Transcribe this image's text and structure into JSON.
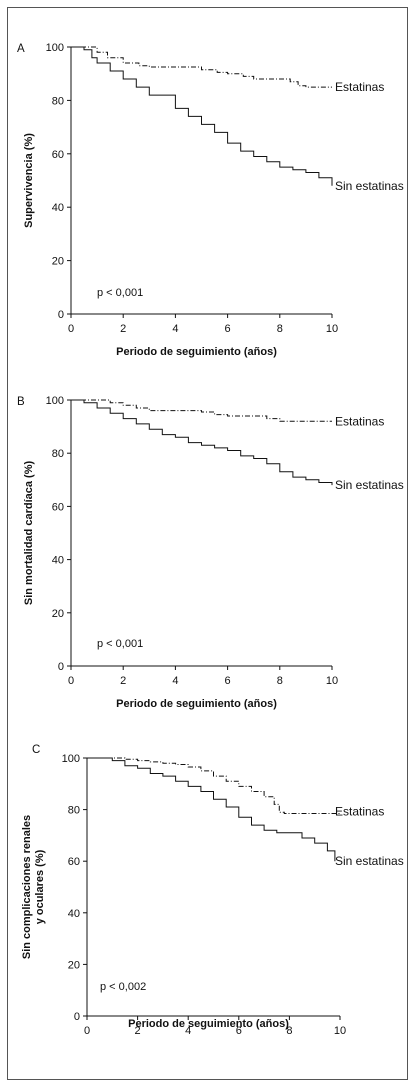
{
  "chart_data": [
    {
      "type": "line",
      "panel_label": "A",
      "xlabel": "Periodo de seguimiento (años)",
      "ylabel": [
        "Supervivencia (%)"
      ],
      "xlim": [
        0,
        10
      ],
      "ylim": [
        0,
        100
      ],
      "xticks": [
        "0",
        "2",
        "4",
        "6",
        "8",
        "10"
      ],
      "yticks": [
        "0",
        "20",
        "40",
        "60",
        "80",
        "100"
      ],
      "annotation": "p < 0,001",
      "series": [
        {
          "name": "Estatinas",
          "style": "dashdot",
          "x": [
            0,
            0.6,
            1.0,
            1.4,
            2.0,
            2.6,
            3.0,
            4.0,
            5.0,
            5.6,
            6.0,
            6.6,
            7.0,
            8.0,
            8.4,
            8.7,
            9.0,
            10.0
          ],
          "y": [
            100,
            100,
            98,
            96,
            94,
            93,
            92.5,
            92.5,
            91.5,
            90.5,
            90,
            89,
            88,
            88,
            87,
            85.5,
            85,
            85
          ]
        },
        {
          "name": "Sin estatinas",
          "style": "solid",
          "x": [
            0,
            0.5,
            0.8,
            1.0,
            1.5,
            2.0,
            2.5,
            3.0,
            4.0,
            4.5,
            5.0,
            5.5,
            6.0,
            6.5,
            7.0,
            7.5,
            8.0,
            8.5,
            9.0,
            9.5,
            10.0
          ],
          "y": [
            100,
            99,
            96,
            94,
            91,
            88,
            85,
            82,
            77,
            74,
            71,
            68,
            64,
            61,
            59,
            57,
            55,
            54,
            53,
            51,
            48
          ]
        }
      ]
    },
    {
      "type": "line",
      "panel_label": "B",
      "xlabel": "Periodo de seguimiento (años)",
      "ylabel": [
        "Sin mortalidad cardíaca (%)"
      ],
      "xlim": [
        0,
        10
      ],
      "ylim": [
        0,
        100
      ],
      "xticks": [
        "0",
        "2",
        "4",
        "6",
        "8",
        "10"
      ],
      "yticks": [
        "0",
        "20",
        "40",
        "60",
        "80",
        "100"
      ],
      "annotation": "p < 0,001",
      "series": [
        {
          "name": "Estatinas",
          "style": "dashdot",
          "x": [
            0,
            0.8,
            1.5,
            2.0,
            2.5,
            3.0,
            4.0,
            5.0,
            5.5,
            6.0,
            7.0,
            7.5,
            8.0,
            9.0,
            10.0
          ],
          "y": [
            100,
            100,
            99,
            98,
            97,
            96,
            96,
            95.5,
            94.5,
            94,
            94,
            93,
            92,
            92,
            92
          ]
        },
        {
          "name": "Sin estatinas",
          "style": "solid",
          "x": [
            0,
            0.5,
            1.0,
            1.5,
            2.0,
            2.5,
            3.0,
            3.5,
            4.0,
            4.5,
            5.0,
            5.5,
            6.0,
            6.5,
            7.0,
            7.5,
            8.0,
            8.5,
            9.0,
            9.5,
            10.0
          ],
          "y": [
            100,
            99,
            97,
            95,
            93,
            91,
            89,
            87,
            86,
            84,
            83,
            82,
            81,
            79,
            78,
            76,
            73,
            71,
            70,
            69,
            68
          ]
        }
      ]
    },
    {
      "type": "line",
      "panel_label": "C",
      "xlabel": "Periodo de seguimiento (años)",
      "ylabel": [
        "Sin complicaciones renales",
        "y oculares (%)"
      ],
      "xlim": [
        0,
        10
      ],
      "ylim": [
        0,
        100
      ],
      "xticks": [
        "0",
        "2",
        "4",
        "6",
        "8",
        "10"
      ],
      "yticks": [
        "0",
        "20",
        "40",
        "60",
        "80",
        "100"
      ],
      "annotation": "p < 0,002",
      "series": [
        {
          "name": "Estatinas",
          "style": "dashdot",
          "x": [
            0,
            1.0,
            1.5,
            2.0,
            2.5,
            3.0,
            3.5,
            4.0,
            4.5,
            5.0,
            5.5,
            6.0,
            6.5,
            7.0,
            7.4,
            7.6,
            7.8,
            8.5,
            9.0,
            9.5,
            10.0
          ],
          "y": [
            100,
            100,
            99.5,
            99,
            98.5,
            98,
            97.5,
            96.5,
            95,
            93,
            91,
            89,
            87,
            85,
            82,
            79,
            78.5,
            78.5,
            78.5,
            78.5,
            78.5
          ]
        },
        {
          "name": "Sin estatinas",
          "style": "solid",
          "x": [
            0,
            0.5,
            1.0,
            1.5,
            2.0,
            2.5,
            3.0,
            3.5,
            4.0,
            4.5,
            5.0,
            5.5,
            6.0,
            6.5,
            7.0,
            7.5,
            8.0,
            8.5,
            9.0,
            9.5,
            9.8
          ],
          "y": [
            100,
            100,
            99,
            97,
            96,
            94,
            93,
            91,
            89,
            87,
            84,
            81,
            77,
            74,
            72,
            71,
            71,
            69,
            67,
            64,
            60
          ]
        }
      ]
    }
  ]
}
